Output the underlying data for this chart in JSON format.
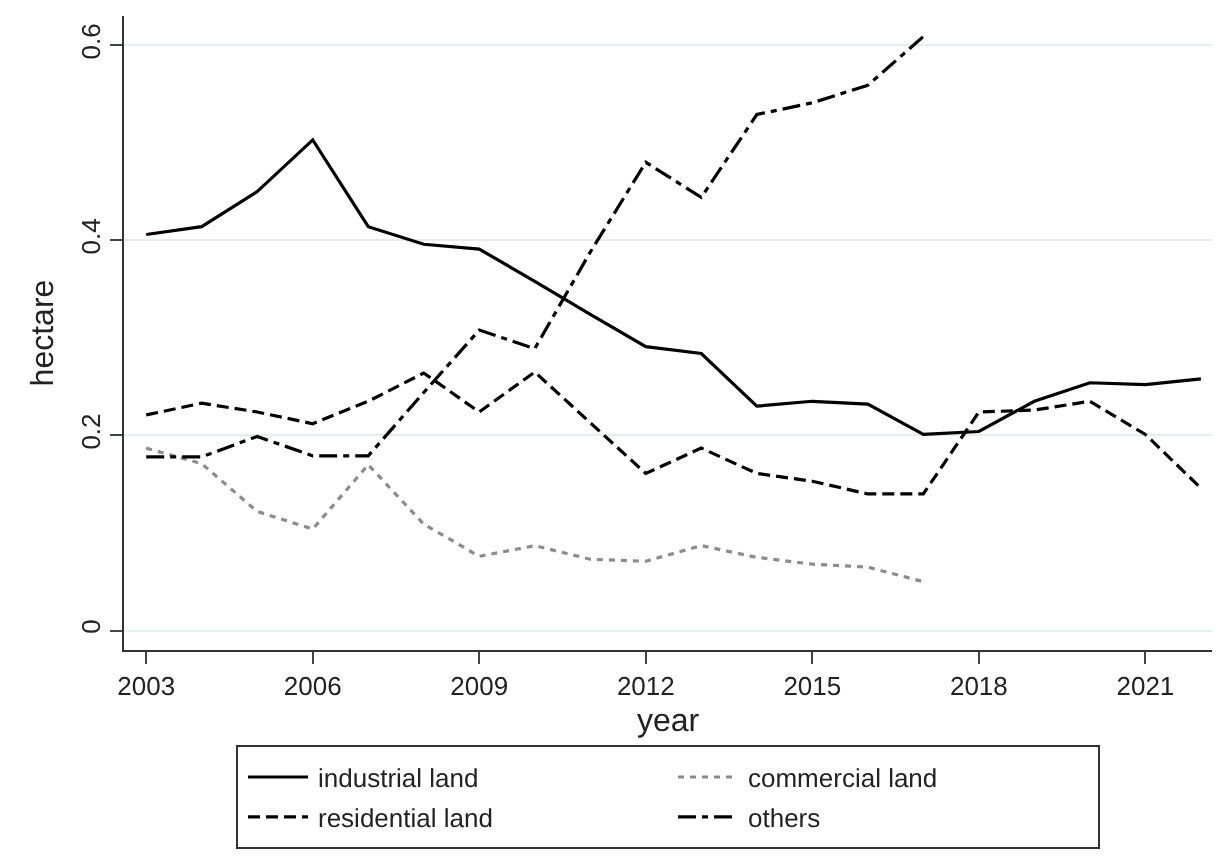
{
  "chart_data": {
    "type": "line",
    "xlabel": "year",
    "ylabel": "hectare",
    "x": [
      2003,
      2004,
      2005,
      2006,
      2007,
      2008,
      2009,
      2010,
      2011,
      2012,
      2013,
      2014,
      2015,
      2016,
      2017,
      2018,
      2019,
      2020,
      2021,
      2022
    ],
    "xlim": [
      2002.6,
      2022.2
    ],
    "xticks": [
      2003,
      2006,
      2009,
      2012,
      2015,
      2018,
      2021
    ],
    "ylim": [
      -0.02,
      0.63
    ],
    "yticks": [
      0,
      0.2,
      0.4,
      0.6
    ],
    "grid": "y",
    "legend": "bottom",
    "series": [
      {
        "name": "industrial land",
        "color": "#000000",
        "line_style": "solid",
        "values": [
          0.406,
          0.414,
          0.45,
          0.503,
          0.414,
          0.396,
          0.391,
          0.358,
          0.324,
          0.291,
          0.284,
          0.23,
          0.235,
          0.232,
          0.201,
          0.204,
          0.235,
          0.254,
          0.252,
          0.258
        ]
      },
      {
        "name": "residential land",
        "color": "#000000",
        "line_style": "dashed",
        "values": [
          0.221,
          0.233,
          0.224,
          0.212,
          0.235,
          0.264,
          0.224,
          0.265,
          0.213,
          0.161,
          0.187,
          0.161,
          0.153,
          0.14,
          0.14,
          0.224,
          0.226,
          0.235,
          0.201,
          0.146
        ]
      },
      {
        "name": "commercial land",
        "color": "#8c8c8c",
        "line_style": "dotted",
        "values": [
          0.187,
          0.171,
          0.122,
          0.104,
          0.17,
          0.109,
          0.076,
          0.087,
          0.073,
          0.071,
          0.087,
          0.075,
          0.068,
          0.065,
          0.05,
          null,
          null,
          null,
          null,
          null
        ]
      },
      {
        "name": "others",
        "color": "#000000",
        "line_style": "dashdot",
        "values": [
          0.178,
          0.178,
          0.199,
          0.179,
          0.179,
          0.244,
          0.308,
          0.289,
          0.388,
          0.48,
          0.444,
          0.529,
          0.541,
          0.559,
          0.609,
          null,
          null,
          null,
          null,
          null
        ]
      }
    ]
  }
}
